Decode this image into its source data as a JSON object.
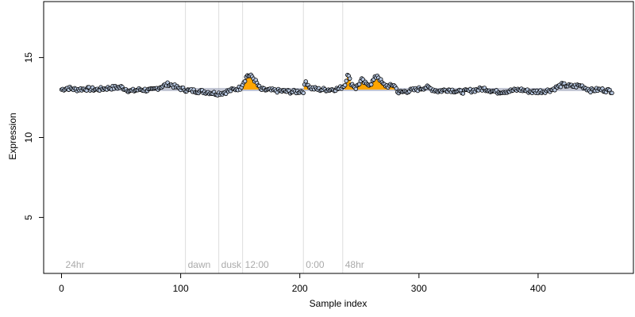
{
  "chart_data": {
    "type": "scatter",
    "xlabel": "Sample index",
    "ylabel": "Expression",
    "xlim": [
      -15,
      480
    ],
    "ylim": [
      1.5,
      18.5
    ],
    "x_ticks": [
      0,
      100,
      200,
      300,
      400
    ],
    "y_ticks": [
      5,
      10,
      15
    ],
    "baseline": 13.0,
    "dividers": [
      {
        "x": 104,
        "label": "dawn"
      },
      {
        "x": 132,
        "label": "dusk"
      },
      {
        "x": 152,
        "label": "12:00"
      },
      {
        "x": 203,
        "label": "0:00"
      },
      {
        "x": 236,
        "label": "48hr"
      }
    ],
    "start_label": {
      "x": 2,
      "label": "24hr"
    },
    "highlight_ranges": [
      [
        153,
        165
      ],
      [
        204,
        207
      ],
      [
        238,
        279
      ]
    ],
    "highlight_color": "#FFA500",
    "point_fill": "#B7C7E0",
    "point_stroke": "#000000",
    "band_color": "#9AA0B8",
    "anchors": [
      [
        0,
        13.0
      ],
      [
        5,
        13.1
      ],
      [
        12,
        13.0
      ],
      [
        20,
        13.05
      ],
      [
        30,
        13.0
      ],
      [
        40,
        13.1
      ],
      [
        50,
        13.15
      ],
      [
        58,
        12.9
      ],
      [
        66,
        13.0
      ],
      [
        76,
        12.95
      ],
      [
        84,
        13.2
      ],
      [
        90,
        13.35
      ],
      [
        98,
        13.1
      ],
      [
        106,
        12.95
      ],
      [
        114,
        12.9
      ],
      [
        122,
        12.85
      ],
      [
        130,
        12.75
      ],
      [
        136,
        12.8
      ],
      [
        142,
        12.95
      ],
      [
        150,
        13.1
      ],
      [
        153,
        13.5
      ],
      [
        156,
        13.9
      ],
      [
        160,
        13.8
      ],
      [
        163,
        13.5
      ],
      [
        167,
        13.0
      ],
      [
        175,
        12.95
      ],
      [
        185,
        12.9
      ],
      [
        195,
        12.85
      ],
      [
        203,
        12.9
      ],
      [
        205,
        13.5
      ],
      [
        209,
        13.1
      ],
      [
        216,
        13.0
      ],
      [
        225,
        13.0
      ],
      [
        233,
        13.05
      ],
      [
        238,
        13.3
      ],
      [
        240,
        14.0
      ],
      [
        243,
        13.4
      ],
      [
        247,
        13.1
      ],
      [
        252,
        13.6
      ],
      [
        256,
        13.3
      ],
      [
        260,
        13.4
      ],
      [
        265,
        13.9
      ],
      [
        270,
        13.3
      ],
      [
        275,
        13.2
      ],
      [
        279,
        13.3
      ],
      [
        283,
        12.8
      ],
      [
        290,
        12.9
      ],
      [
        298,
        13.0
      ],
      [
        306,
        13.15
      ],
      [
        316,
        12.9
      ],
      [
        325,
        13.0
      ],
      [
        335,
        12.85
      ],
      [
        345,
        12.95
      ],
      [
        355,
        13.05
      ],
      [
        365,
        12.85
      ],
      [
        375,
        12.9
      ],
      [
        385,
        13.0
      ],
      [
        395,
        12.85
      ],
      [
        405,
        12.9
      ],
      [
        412,
        13.0
      ],
      [
        420,
        13.3
      ],
      [
        428,
        13.2
      ],
      [
        436,
        13.25
      ],
      [
        444,
        12.95
      ],
      [
        452,
        13.0
      ],
      [
        462,
        12.9
      ]
    ],
    "noise_amplitude": 0.12,
    "n_points": 463
  }
}
